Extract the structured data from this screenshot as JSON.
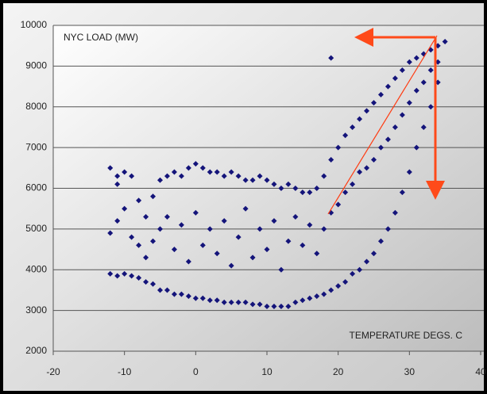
{
  "chart_data": {
    "type": "scatter",
    "ylabel": "NYC LOAD (MW)",
    "xlabel": "TEMPERATURE DEGS. C",
    "xlim": [
      -20,
      40
    ],
    "xticks": [
      -20,
      -10,
      0,
      10,
      20,
      30,
      40
    ],
    "ylim": [
      2000,
      10000
    ],
    "yticks": [
      2000,
      3000,
      4000,
      5000,
      6000,
      7000,
      8000,
      9000,
      10000
    ],
    "grid": true,
    "series": [
      {
        "color": "#14147a",
        "x": [
          -12,
          -12,
          -12,
          -11,
          -11,
          -11,
          -10,
          -10,
          -10,
          -9,
          -9,
          -9,
          -8,
          -8,
          -8,
          -7,
          -7,
          -7,
          -6,
          -6,
          -6,
          -5,
          -5,
          -5,
          -4,
          -4,
          -4,
          -3,
          -3,
          -3,
          -2,
          -2,
          -2,
          -1,
          -1,
          -1,
          0,
          0,
          0,
          1,
          1,
          1,
          2,
          2,
          2,
          3,
          3,
          3,
          4,
          4,
          4,
          5,
          5,
          5,
          6,
          6,
          6,
          7,
          7,
          7,
          8,
          8,
          8,
          9,
          9,
          9,
          10,
          10,
          10,
          11,
          11,
          11,
          12,
          12,
          12,
          13,
          13,
          13,
          14,
          14,
          14,
          15,
          15,
          15,
          16,
          16,
          16,
          17,
          17,
          17,
          18,
          18,
          18,
          19,
          19,
          19,
          20,
          20,
          20,
          21,
          21,
          21,
          22,
          22,
          22,
          23,
          23,
          23,
          24,
          24,
          24,
          25,
          25,
          25,
          26,
          26,
          26,
          27,
          27,
          27,
          28,
          28,
          28,
          29,
          29,
          29,
          30,
          30,
          30,
          31,
          31,
          31,
          32,
          32,
          32,
          33,
          33,
          33,
          34,
          34,
          34,
          19,
          35,
          -11
        ],
        "values": [
          3900,
          4900,
          6500,
          3850,
          5200,
          6300,
          3900,
          5500,
          6400,
          3850,
          4800,
          6300,
          3800,
          4600,
          5700,
          3700,
          4300,
          5300,
          3650,
          4700,
          5800,
          3500,
          5000,
          6200,
          3500,
          5300,
          6300,
          3400,
          4500,
          6400,
          3400,
          5100,
          6300,
          3350,
          4200,
          6500,
          3300,
          5400,
          6600,
          3300,
          4600,
          6500,
          3250,
          5000,
          6400,
          3250,
          4400,
          6400,
          3200,
          5200,
          6300,
          3200,
          4100,
          6400,
          3200,
          4800,
          6300,
          3200,
          5500,
          6200,
          3150,
          4300,
          6200,
          3150,
          5000,
          6300,
          3100,
          4500,
          6200,
          3100,
          5200,
          6100,
          3100,
          4000,
          6000,
          3100,
          4700,
          6100,
          3200,
          5300,
          6000,
          3250,
          4600,
          5900,
          3300,
          5100,
          5900,
          3350,
          4400,
          6000,
          3400,
          5000,
          6300,
          3500,
          5400,
          6700,
          3600,
          5600,
          7000,
          3700,
          5900,
          7300,
          3900,
          6100,
          7500,
          4000,
          6400,
          7700,
          4200,
          6500,
          7900,
          4400,
          6700,
          8100,
          4700,
          7000,
          8300,
          5000,
          7200,
          8500,
          5400,
          7500,
          8700,
          5900,
          7800,
          8900,
          6400,
          8100,
          9100,
          7000,
          8400,
          9200,
          7500,
          8600,
          9300,
          8000,
          8900,
          9400,
          8600,
          9100,
          9500,
          9200,
          9600,
          6100
        ]
      }
    ]
  }
}
